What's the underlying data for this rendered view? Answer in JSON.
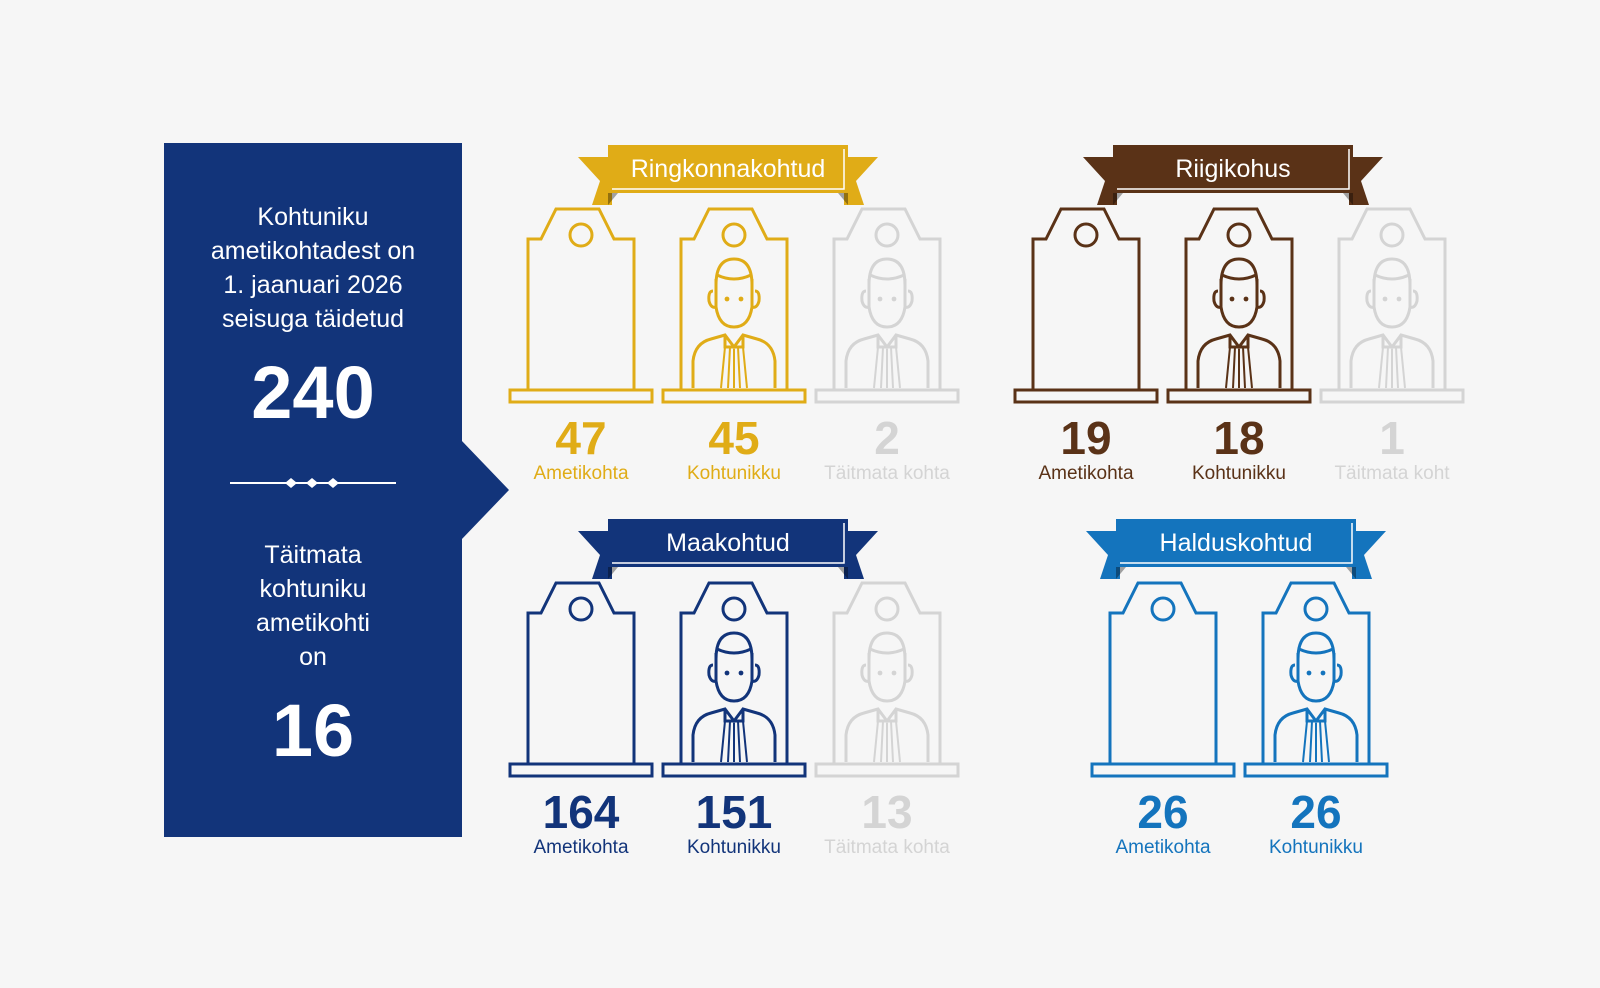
{
  "summary": {
    "filled_text_1": "Kohtuniku",
    "filled_text_2": "ametikohtadest on",
    "filled_text_3": "1. jaanuari 2026",
    "filled_text_4": "seisuga täidetud",
    "filled_value": "240",
    "vacant_text_1": "Täitmata",
    "vacant_text_2": "kohtuniku",
    "vacant_text_3": "ametikohti",
    "vacant_text_4": "on",
    "vacant_value": "16",
    "color": "#12347a"
  },
  "courts": [
    {
      "name": "Ringkonnakohtud",
      "color": "#e0ac17",
      "slots": [
        {
          "value": "47",
          "label": "Ametikohta",
          "icon": "empty-judge-seat-icon",
          "faded": false
        },
        {
          "value": "45",
          "label": "Kohtunikku",
          "icon": "judge-icon",
          "faded": false
        },
        {
          "value": "2",
          "label": "Täitmata kohta",
          "icon": "vacant-judge-icon",
          "faded": true
        }
      ]
    },
    {
      "name": "Riigikohus",
      "color": "#5a3217",
      "slots": [
        {
          "value": "19",
          "label": "Ametikohta",
          "icon": "empty-judge-seat-icon",
          "faded": false
        },
        {
          "value": "18",
          "label": "Kohtunikku",
          "icon": "judge-icon",
          "faded": false
        },
        {
          "value": "1",
          "label": "Täitmata koht",
          "icon": "vacant-judge-icon",
          "faded": true
        }
      ]
    },
    {
      "name": "Maakohtud",
      "color": "#12347a",
      "slots": [
        {
          "value": "164",
          "label": "Ametikohta",
          "icon": "empty-judge-seat-icon",
          "faded": false
        },
        {
          "value": "151",
          "label": "Kohtunikku",
          "icon": "judge-icon",
          "faded": false
        },
        {
          "value": "13",
          "label": "Täitmata kohta",
          "icon": "vacant-judge-icon",
          "faded": true
        }
      ]
    },
    {
      "name": "Halduskohtud",
      "color": "#1474bd",
      "slots": [
        {
          "value": "26",
          "label": "Ametikohta",
          "icon": "empty-judge-seat-icon",
          "faded": false
        },
        {
          "value": "26",
          "label": "Kohtunikku",
          "icon": "judge-icon",
          "faded": false
        }
      ]
    }
  ],
  "faded_color": "#d4d4d4"
}
